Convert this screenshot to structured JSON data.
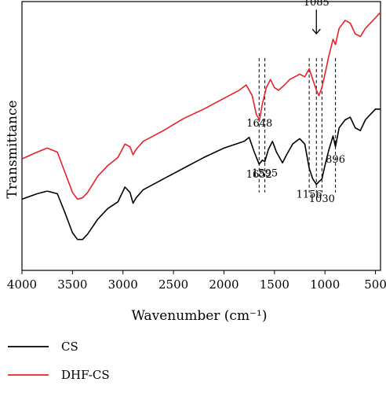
{
  "chart_data": {
    "type": "line",
    "xlabel": "Wavenumber (cm⁻¹)",
    "ylabel": "Transmittance",
    "xlim": [
      4000,
      450
    ],
    "x_reversed": true,
    "xticks": [
      4000,
      3500,
      3000,
      2500,
      2000,
      1500,
      1000,
      500
    ],
    "ylim": [
      0,
      100
    ],
    "yticks_shown": false,
    "grid": false,
    "legend_placement": "bottom-left",
    "series": [
      {
        "name": "CS",
        "color": "#000000",
        "points": [
          [
            4000,
            26.5
          ],
          [
            3850,
            28.5
          ],
          [
            3750,
            29.5
          ],
          [
            3650,
            28.5
          ],
          [
            3580,
            22
          ],
          [
            3500,
            14
          ],
          [
            3450,
            11.5
          ],
          [
            3400,
            11.5
          ],
          [
            3350,
            13.5
          ],
          [
            3250,
            19
          ],
          [
            3150,
            23
          ],
          [
            3050,
            25.5
          ],
          [
            2980,
            31
          ],
          [
            2930,
            29
          ],
          [
            2900,
            25
          ],
          [
            2870,
            27
          ],
          [
            2800,
            30
          ],
          [
            2600,
            34
          ],
          [
            2400,
            38
          ],
          [
            2200,
            42
          ],
          [
            2000,
            45.5
          ],
          [
            1800,
            48
          ],
          [
            1750,
            49.5
          ],
          [
            1700,
            44
          ],
          [
            1652,
            39.5
          ],
          [
            1620,
            41
          ],
          [
            1595,
            40.5
          ],
          [
            1560,
            45
          ],
          [
            1520,
            48
          ],
          [
            1480,
            44
          ],
          [
            1420,
            40
          ],
          [
            1380,
            43
          ],
          [
            1320,
            47
          ],
          [
            1250,
            49
          ],
          [
            1200,
            47
          ],
          [
            1156,
            38
          ],
          [
            1120,
            34
          ],
          [
            1085,
            32
          ],
          [
            1060,
            33
          ],
          [
            1030,
            34
          ],
          [
            1000,
            39
          ],
          [
            960,
            45
          ],
          [
            920,
            50
          ],
          [
            896,
            46
          ],
          [
            860,
            53
          ],
          [
            800,
            56
          ],
          [
            750,
            57
          ],
          [
            700,
            53
          ],
          [
            650,
            52
          ],
          [
            600,
            56
          ],
          [
            550,
            58
          ],
          [
            500,
            60
          ],
          [
            450,
            60
          ]
        ]
      },
      {
        "name": "DHF-CS",
        "color": "#e8202a",
        "points": [
          [
            4000,
            41.5
          ],
          [
            3850,
            44
          ],
          [
            3750,
            45.5
          ],
          [
            3650,
            44
          ],
          [
            3580,
            37
          ],
          [
            3500,
            29
          ],
          [
            3450,
            26.5
          ],
          [
            3400,
            27
          ],
          [
            3350,
            29
          ],
          [
            3250,
            35
          ],
          [
            3150,
            39
          ],
          [
            3050,
            42
          ],
          [
            2980,
            47
          ],
          [
            2930,
            46
          ],
          [
            2900,
            43
          ],
          [
            2870,
            45
          ],
          [
            2800,
            48
          ],
          [
            2600,
            52
          ],
          [
            2400,
            56.5
          ],
          [
            2200,
            60
          ],
          [
            2000,
            64
          ],
          [
            1850,
            67
          ],
          [
            1780,
            69
          ],
          [
            1720,
            65
          ],
          [
            1680,
            58
          ],
          [
            1648,
            56
          ],
          [
            1620,
            62
          ],
          [
            1580,
            68
          ],
          [
            1540,
            71
          ],
          [
            1500,
            68
          ],
          [
            1460,
            67
          ],
          [
            1400,
            69
          ],
          [
            1350,
            71
          ],
          [
            1300,
            72
          ],
          [
            1250,
            73
          ],
          [
            1200,
            72
          ],
          [
            1156,
            75
          ],
          [
            1120,
            71
          ],
          [
            1085,
            67
          ],
          [
            1060,
            65
          ],
          [
            1030,
            68
          ],
          [
            1000,
            73
          ],
          [
            960,
            80
          ],
          [
            920,
            86
          ],
          [
            896,
            84
          ],
          [
            860,
            90
          ],
          [
            800,
            93
          ],
          [
            750,
            92
          ],
          [
            700,
            88
          ],
          [
            650,
            87
          ],
          [
            600,
            90
          ],
          [
            550,
            92
          ],
          [
            500,
            94
          ],
          [
            450,
            96
          ]
        ]
      }
    ],
    "reference_lines": [
      1652,
      1595,
      1156,
      1085,
      1030,
      896
    ],
    "annotations": [
      {
        "text": "1648",
        "x": 1648,
        "y": 53.5
      },
      {
        "text": "1085",
        "x": 1085,
        "y": 98.5
      },
      {
        "text": "1652",
        "x": 1652,
        "y": 34.5
      },
      {
        "text": "1595",
        "x": 1595,
        "y": 35
      },
      {
        "text": "1156",
        "x": 1156,
        "y": 27
      },
      {
        "text": "1030",
        "x": 1030,
        "y": 25.5
      },
      {
        "text": "896",
        "x": 896,
        "y": 40
      }
    ],
    "arrow": {
      "x": 1085,
      "from_y": 97,
      "to_y": 88
    }
  }
}
